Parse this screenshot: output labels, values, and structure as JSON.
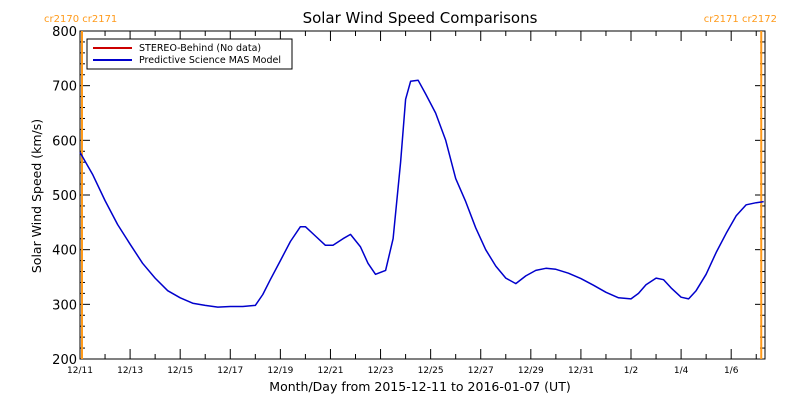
{
  "chart_data": {
    "type": "line",
    "title": "Solar Wind Speed Comparisons",
    "xlabel": "Month/Day from 2015-12-11 to 2016-01-07 (UT)",
    "ylabel": "Solar Wind Speed (km/s)",
    "xlim": [
      0,
      27.35
    ],
    "ylim": [
      200,
      800
    ],
    "x_ticks": [
      {
        "x": 0,
        "label": "12/11"
      },
      {
        "x": 2,
        "label": "12/13"
      },
      {
        "x": 4,
        "label": "12/15"
      },
      {
        "x": 6,
        "label": "12/17"
      },
      {
        "x": 8,
        "label": "12/19"
      },
      {
        "x": 10,
        "label": "12/21"
      },
      {
        "x": 12,
        "label": "12/23"
      },
      {
        "x": 14,
        "label": "12/25"
      },
      {
        "x": 16,
        "label": "12/27"
      },
      {
        "x": 18,
        "label": "12/29"
      },
      {
        "x": 20,
        "label": "12/31"
      },
      {
        "x": 22,
        "label": "1/2"
      },
      {
        "x": 24,
        "label": "1/4"
      },
      {
        "x": 26,
        "label": "1/6"
      }
    ],
    "y_ticks": [
      200,
      300,
      400,
      500,
      600,
      700,
      800
    ],
    "grid": false,
    "legend_position": "top-left",
    "series": [
      {
        "name": "STEREO-Behind (No data)",
        "color": "#cc0000",
        "x": [],
        "y": []
      },
      {
        "name": "Predictive Science MAS Model",
        "color": "#0000cc",
        "x": [
          0,
          0.5,
          1.0,
          1.5,
          2.0,
          2.5,
          3.0,
          3.5,
          4.0,
          4.5,
          5.0,
          5.5,
          6.0,
          6.5,
          7.0,
          7.3,
          7.6,
          8.0,
          8.4,
          8.8,
          9.0,
          9.4,
          9.8,
          10.1,
          10.5,
          10.8,
          11.2,
          11.5,
          11.8,
          12.2,
          12.5,
          12.8,
          13.0,
          13.2,
          13.5,
          13.8,
          14.2,
          14.6,
          15.0,
          15.4,
          15.8,
          16.2,
          16.6,
          17.0,
          17.4,
          17.8,
          18.2,
          18.6,
          19.0,
          19.5,
          20.0,
          20.5,
          21.0,
          21.5,
          22.0,
          22.3,
          22.6,
          23.0,
          23.3,
          23.6,
          24.0,
          24.3,
          24.6,
          25.0,
          25.4,
          25.8,
          26.2,
          26.6,
          27.0,
          27.3
        ],
        "y": [
          578,
          538,
          490,
          446,
          410,
          375,
          348,
          325,
          312,
          302,
          298,
          295,
          296,
          296,
          298,
          318,
          345,
          380,
          415,
          442,
          442,
          425,
          408,
          408,
          420,
          428,
          405,
          375,
          355,
          362,
          420,
          560,
          675,
          708,
          710,
          685,
          650,
          600,
          530,
          488,
          440,
          400,
          370,
          348,
          338,
          352,
          362,
          366,
          364,
          357,
          347,
          335,
          322,
          312,
          310,
          320,
          336,
          348,
          345,
          330,
          313,
          310,
          325,
          355,
          395,
          430,
          462,
          482,
          486,
          488
        ]
      }
    ],
    "markers": [
      {
        "x": 0.0,
        "color": "#ff9a1a",
        "label": "cr2170 cr2171"
      },
      {
        "x": 27.2,
        "color": "#ff9a1a",
        "label": "cr2171 cr2172"
      }
    ]
  }
}
